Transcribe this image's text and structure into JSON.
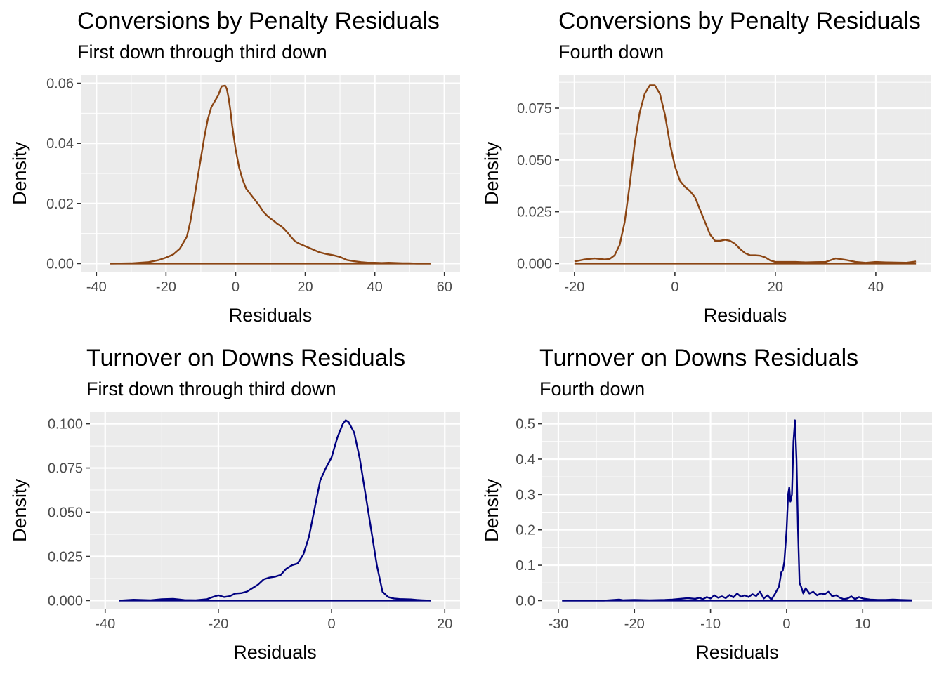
{
  "chart_data": [
    {
      "type": "line",
      "title": "Conversions by Penalty Residuals",
      "subtitle": "First down through third down",
      "xlabel": "Residuals",
      "ylabel": "Density",
      "xlim": [
        -40,
        60
      ],
      "ylim": [
        0,
        0.06
      ],
      "xticks": [
        -40,
        -20,
        0,
        20,
        40,
        60
      ],
      "yticks": [
        0.0,
        0.02,
        0.04,
        0.06
      ],
      "yticklabels": [
        "0.00",
        "0.02",
        "0.04",
        "0.06"
      ],
      "grid": true,
      "color": "#8B4513",
      "series": [
        {
          "x": [
            -36,
            -30,
            -25,
            -22,
            -20,
            -18,
            -16,
            -14,
            -13,
            -12,
            -11,
            -10,
            -9,
            -8,
            -7,
            -6,
            -5,
            -4,
            -3,
            -2.5,
            -2,
            -1.5,
            -1,
            0,
            1,
            2,
            3,
            4,
            5,
            6,
            7,
            8,
            9,
            10,
            11,
            12,
            13,
            14,
            15,
            16,
            17,
            18,
            20,
            22,
            24,
            26,
            28,
            30,
            32,
            34,
            36,
            38,
            40,
            42,
            44,
            46,
            48,
            50,
            52,
            54,
            56
          ],
          "y": [
            0.0,
            0.0001,
            0.0005,
            0.0012,
            0.002,
            0.003,
            0.005,
            0.009,
            0.014,
            0.021,
            0.028,
            0.035,
            0.042,
            0.048,
            0.052,
            0.054,
            0.056,
            0.059,
            0.0592,
            0.058,
            0.055,
            0.051,
            0.046,
            0.038,
            0.032,
            0.028,
            0.025,
            0.0235,
            0.022,
            0.0205,
            0.019,
            0.0172,
            0.016,
            0.015,
            0.0142,
            0.0132,
            0.0125,
            0.0115,
            0.0102,
            0.0088,
            0.0075,
            0.0068,
            0.0058,
            0.0048,
            0.0038,
            0.0032,
            0.0028,
            0.0022,
            0.0012,
            0.0008,
            0.0005,
            0.0003,
            0.0003,
            0.0002,
            0.0003,
            0.0002,
            0.0001,
            0.0001,
            0.0,
            0.0,
            0.0
          ]
        }
      ]
    },
    {
      "type": "line",
      "title": "Conversions by Penalty Residuals",
      "subtitle": "Fourth down",
      "xlabel": "Residuals",
      "ylabel": "Density",
      "xlim": [
        -20,
        48
      ],
      "ylim": [
        0,
        0.087
      ],
      "xticks": [
        -20,
        0,
        20,
        40
      ],
      "yticks": [
        0.0,
        0.025,
        0.05,
        0.075
      ],
      "yticklabels": [
        "0.000",
        "0.025",
        "0.050",
        "0.075"
      ],
      "grid": true,
      "color": "#8B4513",
      "series": [
        {
          "x": [
            -20,
            -18,
            -16,
            -14,
            -13,
            -12,
            -11,
            -10,
            -9,
            -8,
            -7,
            -6,
            -5,
            -4,
            -3,
            -2,
            -1,
            0,
            1,
            2,
            3,
            4,
            5,
            6,
            7,
            8,
            9,
            10,
            11,
            12,
            13,
            14,
            15,
            16,
            17,
            18,
            19,
            20,
            22,
            24,
            26,
            28,
            30,
            32,
            34,
            36,
            38,
            40,
            42,
            44,
            46,
            48
          ],
          "y": [
            0.001,
            0.002,
            0.0025,
            0.002,
            0.0022,
            0.004,
            0.009,
            0.02,
            0.038,
            0.058,
            0.073,
            0.082,
            0.086,
            0.086,
            0.082,
            0.072,
            0.058,
            0.047,
            0.04,
            0.037,
            0.035,
            0.032,
            0.026,
            0.02,
            0.014,
            0.011,
            0.011,
            0.0115,
            0.011,
            0.0095,
            0.007,
            0.005,
            0.004,
            0.004,
            0.0038,
            0.003,
            0.0015,
            0.0008,
            0.0008,
            0.0008,
            0.0006,
            0.0007,
            0.0008,
            0.0025,
            0.0018,
            0.0008,
            0.0004,
            0.0008,
            0.0006,
            0.0005,
            0.0004,
            0.001
          ]
        }
      ]
    },
    {
      "type": "line",
      "title": "Turnover on Downs Residuals",
      "subtitle": "First down through third down",
      "xlabel": "Residuals",
      "ylabel": "Density",
      "xlim": [
        -40,
        20
      ],
      "ylim": [
        0,
        0.102
      ],
      "xticks": [
        -40,
        -20,
        0,
        20
      ],
      "yticks": [
        0.0,
        0.025,
        0.05,
        0.075,
        0.1
      ],
      "yticklabels": [
        "0.000",
        "0.025",
        "0.050",
        "0.075",
        "0.100"
      ],
      "grid": true,
      "color": "#000080",
      "series": [
        {
          "x": [
            -37.5,
            -35,
            -32,
            -30,
            -28,
            -26,
            -24,
            -22,
            -21,
            -20,
            -19,
            -18,
            -17,
            -16,
            -15,
            -14,
            -13,
            -12,
            -11,
            -10,
            -9,
            -8,
            -7,
            -6,
            -5,
            -4,
            -3,
            -2,
            -1,
            0,
            1,
            2,
            2.5,
            3,
            4,
            5,
            6,
            7,
            8,
            9,
            10,
            11,
            12,
            13,
            14,
            15,
            16,
            17.5
          ],
          "y": [
            0.0,
            0.0005,
            0.0002,
            0.0008,
            0.001,
            0.0003,
            0.0002,
            0.0008,
            0.002,
            0.003,
            0.002,
            0.0025,
            0.004,
            0.0042,
            0.005,
            0.007,
            0.009,
            0.012,
            0.013,
            0.0135,
            0.0145,
            0.018,
            0.02,
            0.021,
            0.026,
            0.036,
            0.052,
            0.068,
            0.075,
            0.081,
            0.092,
            0.1,
            0.102,
            0.101,
            0.095,
            0.08,
            0.06,
            0.04,
            0.02,
            0.005,
            0.002,
            0.0012,
            0.0009,
            0.0008,
            0.0007,
            0.0004,
            0.0002,
            0.0
          ]
        }
      ]
    },
    {
      "type": "line",
      "title": "Turnover on Downs Residuals",
      "subtitle": "Fourth down",
      "xlabel": "Residuals",
      "ylabel": "Density",
      "xlim": [
        -30,
        17
      ],
      "ylim": [
        0,
        0.51
      ],
      "xticks": [
        -30,
        -20,
        -10,
        0,
        10
      ],
      "yticks": [
        0.0,
        0.1,
        0.2,
        0.3,
        0.4,
        0.5
      ],
      "yticklabels": [
        "0.0",
        "0.1",
        "0.2",
        "0.3",
        "0.4",
        "0.5"
      ],
      "grid": true,
      "color": "#000080",
      "series": [
        {
          "x": [
            -29.5,
            -24,
            -22,
            -21.5,
            -20,
            -18,
            -16,
            -15,
            -14,
            -13,
            -12,
            -11.5,
            -11,
            -10.5,
            -10,
            -9.5,
            -9,
            -8.5,
            -8,
            -7.5,
            -7,
            -6.5,
            -6,
            -5.5,
            -5,
            -4.5,
            -4,
            -3.5,
            -3,
            -2.5,
            -2,
            -1.5,
            -1,
            -0.7,
            -0.5,
            -0.3,
            0,
            0.2,
            0.35,
            0.5,
            0.7,
            0.9,
            1.1,
            1.3,
            1.5,
            1.7,
            1.9,
            2.2,
            2.5,
            3,
            3.5,
            4,
            4.5,
            5,
            5.5,
            6,
            6.5,
            7,
            7.5,
            8,
            8.5,
            9,
            9.5,
            10,
            11,
            12,
            13,
            14,
            15,
            16.5
          ],
          "y": [
            0.0,
            0.0,
            0.003,
            0.001,
            0.002,
            0.001,
            0.002,
            0.003,
            0.005,
            0.007,
            0.005,
            0.008,
            0.004,
            0.01,
            0.006,
            0.015,
            0.008,
            0.012,
            0.007,
            0.016,
            0.009,
            0.02,
            0.011,
            0.015,
            0.01,
            0.018,
            0.013,
            0.025,
            0.006,
            0.015,
            0.003,
            0.02,
            0.04,
            0.08,
            0.085,
            0.11,
            0.2,
            0.3,
            0.32,
            0.28,
            0.3,
            0.45,
            0.51,
            0.4,
            0.2,
            0.05,
            0.04,
            0.02,
            0.035,
            0.02,
            0.025,
            0.015,
            0.02,
            0.018,
            0.025,
            0.012,
            0.015,
            0.008,
            0.004,
            0.006,
            0.012,
            0.004,
            0.01,
            0.006,
            0.003,
            0.002,
            0.002,
            0.003,
            0.002,
            0.001
          ]
        }
      ]
    }
  ]
}
